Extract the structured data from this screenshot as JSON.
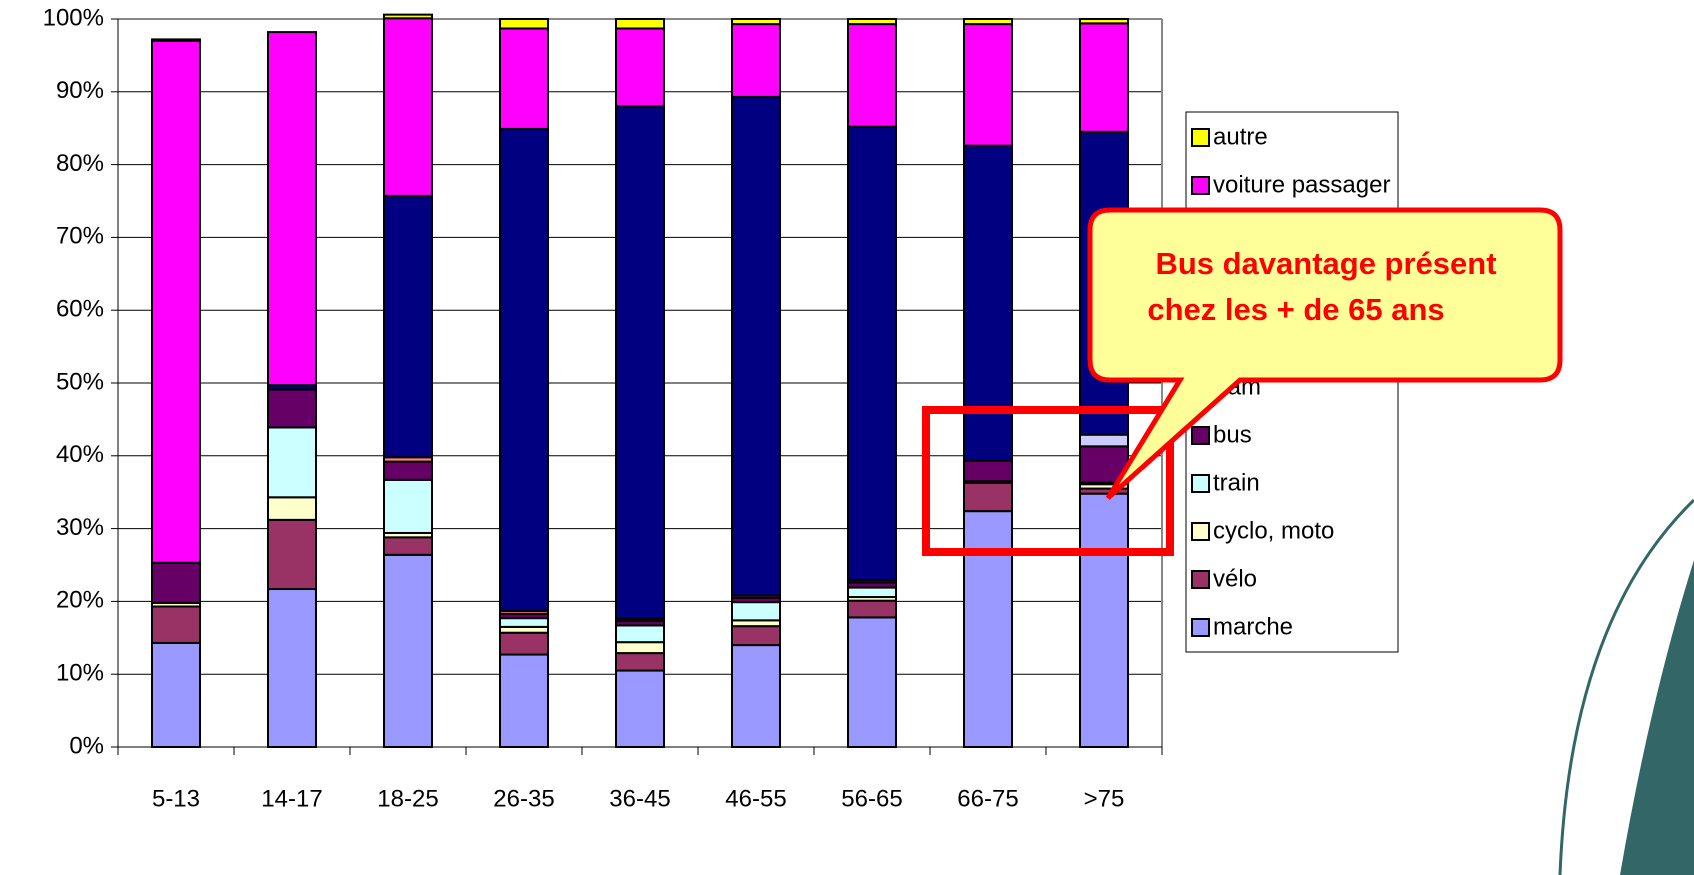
{
  "chart_data": {
    "type": "stacked_bar",
    "categories": [
      "5-13",
      "14-17",
      "18-25",
      "26-35",
      "36-45",
      "46-55",
      "56-65",
      "66-75",
      ">75"
    ],
    "series": [
      {
        "name": "marche",
        "color": "#9999ff",
        "values": [
          14.3,
          21.7,
          26.4,
          12.7,
          10.5,
          14.0,
          17.8,
          32.4,
          34.8
        ]
      },
      {
        "name": "vélo",
        "color": "#993366",
        "values": [
          5.0,
          9.5,
          2.4,
          3.0,
          2.4,
          2.6,
          2.3,
          3.9,
          0.7
        ]
      },
      {
        "name": "cyclo, moto",
        "color": "#ffffcc",
        "values": [
          0.5,
          3.1,
          0.6,
          0.8,
          1.5,
          0.8,
          0.5,
          0,
          0.6
        ]
      },
      {
        "name": "train",
        "color": "#ccffff",
        "values": [
          0,
          9.6,
          7.3,
          1.2,
          2.3,
          2.5,
          1.3,
          0.2,
          0.2
        ]
      },
      {
        "name": "bus",
        "color": "#660066",
        "values": [
          5.5,
          5.2,
          2.5,
          0.6,
          0.6,
          0.6,
          0.7,
          2.8,
          5.0
        ]
      },
      {
        "name": "tram",
        "color": "#ff8080",
        "values": [
          0,
          0,
          0.6,
          0.4,
          0.3,
          0.3,
          0.3,
          0,
          0
        ]
      },
      {
        "name": null,
        "color": "#ccccff",
        "values": [
          0,
          0,
          0,
          0,
          0,
          0,
          0,
          0,
          1.6
        ]
      },
      {
        "name": null,
        "color": "#000080",
        "values": [
          0,
          0.6,
          35.9,
          66.2,
          70.4,
          68.5,
          62.3,
          43.3,
          41.6
        ]
      },
      {
        "name": "voiture passager",
        "color": "#ff00ff",
        "values": [
          71.7,
          48.5,
          24.4,
          13.8,
          10.7,
          10.0,
          14.1,
          16.7,
          14.9
        ]
      },
      {
        "name": "autre",
        "color": "#ffff00",
        "values": [
          0.2,
          0,
          0.5,
          1.3,
          1.3,
          0.7,
          0.7,
          0.7,
          0.6
        ]
      }
    ],
    "ylim": [
      0,
      100
    ],
    "yticks": [
      {
        "value": 0,
        "label": "0%"
      },
      {
        "value": 10,
        "label": "10%"
      },
      {
        "value": 20,
        "label": "20%"
      },
      {
        "value": 30,
        "label": "30%"
      },
      {
        "value": 40,
        "label": "40%"
      },
      {
        "value": 50,
        "label": "50%"
      },
      {
        "value": 60,
        "label": "60%"
      },
      {
        "value": 70,
        "label": "70%"
      },
      {
        "value": 80,
        "label": "80%"
      },
      {
        "value": 90,
        "label": "90%"
      },
      {
        "value": 100,
        "label": "100%"
      }
    ],
    "grid": true,
    "legend": "right",
    "annotations": [
      "Bus davantage présent",
      "chez les + de 65 ans"
    ]
  }
}
